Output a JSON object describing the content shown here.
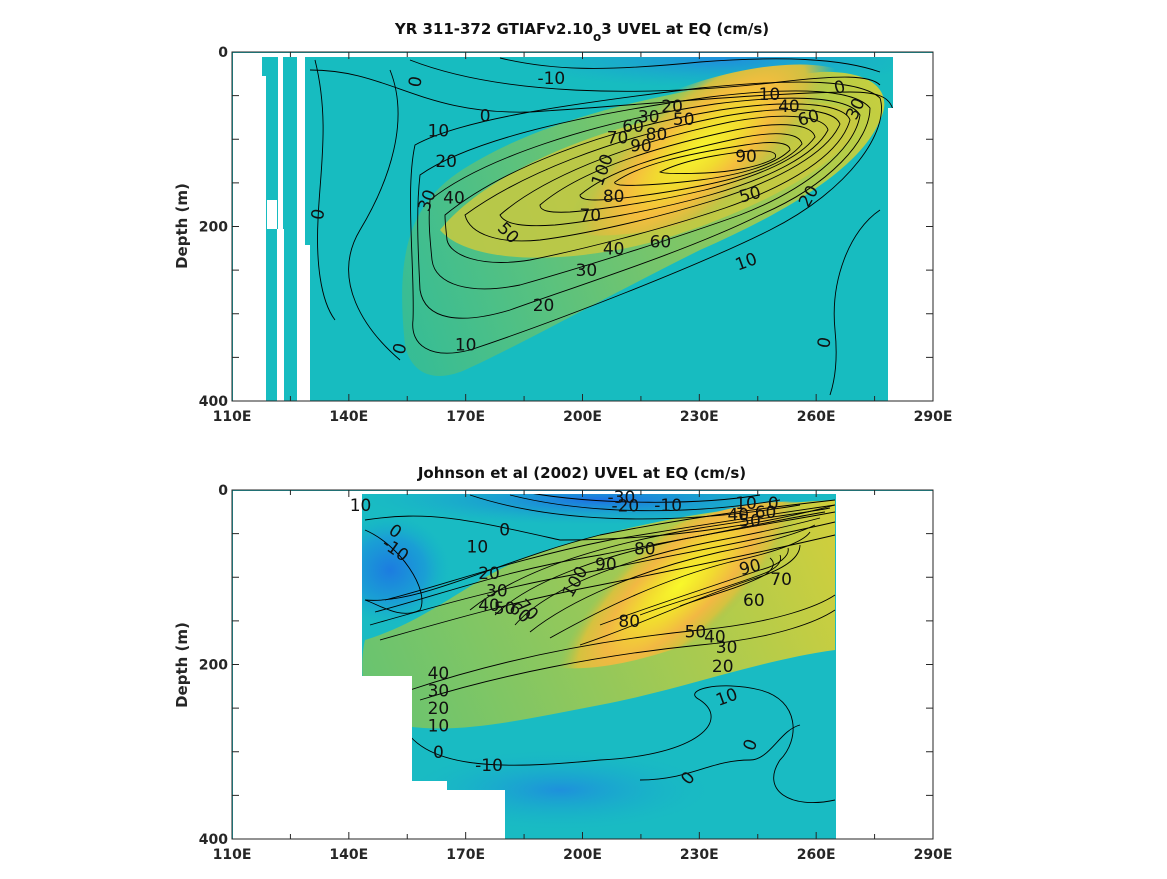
{
  "chart_data": [
    {
      "type": "heatmap",
      "subtype": "filled contour",
      "title_parts": [
        "YR 311-372 GTIAFv2.10",
        "o",
        "3 UVEL at EQ (cm/s)"
      ],
      "ylabel": "Depth (m)",
      "xlabel": "",
      "x_ticks": [
        "110E",
        "140E",
        "170E",
        "200E",
        "230E",
        "260E",
        "290E"
      ],
      "y_ticks": [
        "0",
        "200",
        "400"
      ],
      "xlim": [
        110,
        290
      ],
      "ylim": [
        0,
        400
      ],
      "y_reversed": true,
      "grid": false,
      "core": {
        "lon": 230,
        "depth": 150,
        "max_speed": 100
      },
      "contour_labels": [
        {
          "text": "-10",
          "x": 192,
          "y": 30
        },
        {
          "text": "0",
          "x": 175,
          "y": 73
        },
        {
          "text": "0",
          "x": 157,
          "y": 34,
          "rot": -80
        },
        {
          "text": "0",
          "x": 132,
          "y": 186,
          "rot": -80
        },
        {
          "text": "0",
          "x": 153,
          "y": 340,
          "rot": -75
        },
        {
          "text": "0",
          "x": 262,
          "y": 333,
          "rot": -80
        },
        {
          "text": "0",
          "x": 266,
          "y": 40,
          "rot": -15
        },
        {
          "text": "10",
          "x": 163,
          "y": 90
        },
        {
          "text": "10",
          "x": 248,
          "y": 48
        },
        {
          "text": "10",
          "x": 242,
          "y": 240,
          "rot": -20
        },
        {
          "text": "10",
          "x": 170,
          "y": 335
        },
        {
          "text": "20",
          "x": 165,
          "y": 125
        },
        {
          "text": "20",
          "x": 223,
          "y": 62
        },
        {
          "text": "20",
          "x": 258,
          "y": 165,
          "rot": -60
        },
        {
          "text": "20",
          "x": 190,
          "y": 290
        },
        {
          "text": "30",
          "x": 160,
          "y": 170,
          "rot": -70
        },
        {
          "text": "30",
          "x": 217,
          "y": 74
        },
        {
          "text": "30",
          "x": 270,
          "y": 65,
          "rot": -65
        },
        {
          "text": "30",
          "x": 201,
          "y": 250
        },
        {
          "text": "40",
          "x": 167,
          "y": 167
        },
        {
          "text": "40",
          "x": 208,
          "y": 225
        },
        {
          "text": "40",
          "x": 253,
          "y": 62
        },
        {
          "text": "50",
          "x": 181,
          "y": 207,
          "rot": 45
        },
        {
          "text": "50",
          "x": 226,
          "y": 77
        },
        {
          "text": "50",
          "x": 243,
          "y": 163,
          "rot": -15
        },
        {
          "text": "60",
          "x": 213,
          "y": 85
        },
        {
          "text": "60",
          "x": 220,
          "y": 217
        },
        {
          "text": "60",
          "x": 258,
          "y": 75,
          "rot": -15
        },
        {
          "text": "70",
          "x": 209,
          "y": 98
        },
        {
          "text": "70",
          "x": 202,
          "y": 187
        },
        {
          "text": "80",
          "x": 219,
          "y": 94
        },
        {
          "text": "80",
          "x": 208,
          "y": 165
        },
        {
          "text": "90",
          "x": 215,
          "y": 107
        },
        {
          "text": "90",
          "x": 242,
          "y": 119
        },
        {
          "text": "100",
          "x": 205,
          "y": 135,
          "rot": -70
        }
      ],
      "masked_regions": [
        {
          "x": [
            110,
            118.6,
            118.6,
            110
          ],
          "y": [
            0,
            0,
            400,
            400
          ]
        },
        {
          "x": [
            118.5,
            119.6,
            119.6,
            118.5
          ],
          "y": [
            0,
            0,
            30,
            30
          ]
        },
        {
          "x": [
            120.2,
            123.1,
            123.1,
            120.2
          ],
          "y": [
            200,
            200,
            400,
            400
          ]
        },
        {
          "x": [
            121.8,
            123.1,
            123.1,
            121.8
          ],
          "y": [
            0,
            0,
            200,
            200
          ]
        },
        {
          "x": [
            126.2,
            130,
            130,
            126.2
          ],
          "y": [
            0,
            0,
            400,
            400
          ]
        },
        {
          "x": [
            278.2,
            290,
            290,
            278.2
          ],
          "y": [
            0,
            0,
            400,
            400
          ]
        },
        {
          "x": [
            278,
            290,
            290,
            278
          ],
          "y": [
            0,
            0,
            7,
            7
          ]
        }
      ]
    },
    {
      "type": "heatmap",
      "subtype": "filled contour",
      "title": "Johnson et al (2002) UVEL at EQ (cm/s)",
      "ylabel": "Depth (m)",
      "xlabel": "",
      "x_ticks": [
        "110E",
        "140E",
        "170E",
        "200E",
        "230E",
        "260E",
        "290E"
      ],
      "y_ticks": [
        "0",
        "200",
        "400"
      ],
      "xlim": [
        110,
        290
      ],
      "ylim": [
        0,
        400
      ],
      "y_reversed": true,
      "grid": false,
      "core": {
        "lon": 220,
        "depth": 120,
        "max_speed": 100
      },
      "contour_labels": [
        {
          "text": "-30",
          "x": 210,
          "y": 8
        },
        {
          "text": "-20",
          "x": 211,
          "y": 18
        },
        {
          "text": "-10",
          "x": 222,
          "y": 17
        },
        {
          "text": "-10",
          "x": 152,
          "y": 68,
          "rot": 35
        },
        {
          "text": "-10",
          "x": 176,
          "y": 315
        },
        {
          "text": "0",
          "x": 249,
          "y": 15
        },
        {
          "text": "0",
          "x": 180,
          "y": 45
        },
        {
          "text": "0",
          "x": 152,
          "y": 47,
          "rot": 35
        },
        {
          "text": "0",
          "x": 163,
          "y": 300
        },
        {
          "text": "0",
          "x": 227,
          "y": 330,
          "rot": -50
        },
        {
          "text": "0",
          "x": 243,
          "y": 292,
          "rot": -70
        },
        {
          "text": "10",
          "x": 143,
          "y": 17
        },
        {
          "text": "10",
          "x": 173,
          "y": 65
        },
        {
          "text": "10",
          "x": 242,
          "y": 15
        },
        {
          "text": "10",
          "x": 163,
          "y": 270
        },
        {
          "text": "10",
          "x": 237,
          "y": 237,
          "rot": -20
        },
        {
          "text": "20",
          "x": 176,
          "y": 95
        },
        {
          "text": "20",
          "x": 163,
          "y": 250
        },
        {
          "text": "20",
          "x": 236,
          "y": 202
        },
        {
          "text": "30",
          "x": 178,
          "y": 115
        },
        {
          "text": "30",
          "x": 163,
          "y": 230
        },
        {
          "text": "30",
          "x": 237,
          "y": 180
        },
        {
          "text": "40",
          "x": 176,
          "y": 132
        },
        {
          "text": "40",
          "x": 163,
          "y": 210
        },
        {
          "text": "40",
          "x": 234,
          "y": 168
        },
        {
          "text": "40",
          "x": 240,
          "y": 28
        },
        {
          "text": "50",
          "x": 180,
          "y": 135
        },
        {
          "text": "50",
          "x": 229,
          "y": 162
        },
        {
          "text": "50",
          "x": 243,
          "y": 35
        },
        {
          "text": "60",
          "x": 184,
          "y": 140,
          "rot": 40
        },
        {
          "text": "60",
          "x": 244,
          "y": 126
        },
        {
          "text": "60",
          "x": 247,
          "y": 25
        },
        {
          "text": "70",
          "x": 186,
          "y": 137,
          "rot": 45
        },
        {
          "text": "70",
          "x": 251,
          "y": 102
        },
        {
          "text": "80",
          "x": 212,
          "y": 150
        },
        {
          "text": "80",
          "x": 216,
          "y": 67
        },
        {
          "text": "90",
          "x": 206,
          "y": 85
        },
        {
          "text": "90",
          "x": 243,
          "y": 88,
          "rot": -15
        },
        {
          "text": "100",
          "x": 198,
          "y": 105,
          "rot": -60
        }
      ],
      "masked_regions": [
        {
          "x": [
            110,
            143,
            143,
            110
          ],
          "y": [
            0,
            0,
            400,
            400
          ]
        },
        {
          "x": [
            143,
            156,
            156,
            143
          ],
          "y": [
            215,
            215,
            400,
            400
          ]
        },
        {
          "x": [
            156,
            165,
            165,
            156
          ],
          "y": [
            335,
            335,
            400,
            400
          ]
        },
        {
          "x": [
            165,
            180,
            180,
            165
          ],
          "y": [
            345,
            345,
            400,
            400
          ]
        },
        {
          "x": [
            265,
            290,
            290,
            265
          ],
          "y": [
            0,
            0,
            400,
            400
          ]
        },
        {
          "x": [
            143,
            290,
            290,
            143
          ],
          "y": [
            0,
            0,
            5,
            5
          ]
        }
      ]
    }
  ]
}
